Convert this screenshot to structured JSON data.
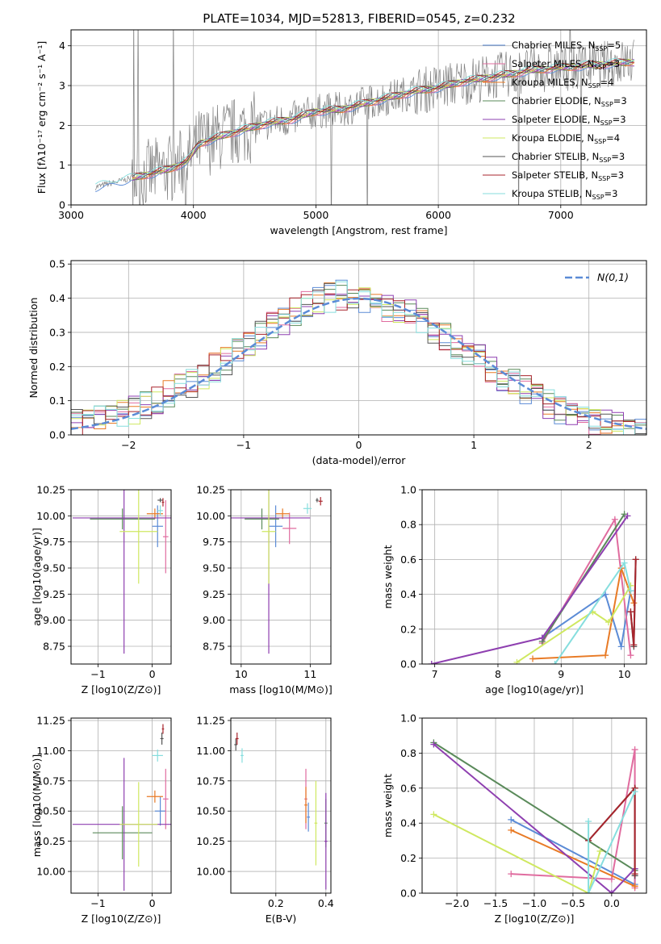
{
  "figure_title": "PLATE=1034, MJD=52813, FIBERID=0545, z=0.232",
  "colors": {
    "Chabrier MILES": "#5b8bd6",
    "Salpeter MILES": "#e06c9f",
    "Kroupa MILES": "#e87a25",
    "Chabrier ELODIE": "#5a8a5a",
    "Salpeter ELODIE": "#8e3fb0",
    "Kroupa ELODIE": "#cfe860",
    "Chabrier STELIB": "#555555",
    "Salpeter STELIB": "#a8242c",
    "Kroupa STELIB": "#86dede",
    "data": "#808080",
    "normal": "#5b8bd6"
  },
  "chart_data": [
    {
      "id": "spectrum",
      "type": "line",
      "xlabel": "wavelength [Angstrom, rest frame]",
      "ylabel": "Flux [fλ10⁻¹⁷ erg cm⁻² s⁻¹ A⁻¹]",
      "xlim": [
        3000,
        7700
      ],
      "ylim": [
        0,
        4.4
      ],
      "xticks": [
        "3000",
        "4000",
        "5000",
        "6000",
        "7000"
      ],
      "yticks": [
        "0",
        "1",
        "2",
        "3",
        "4"
      ],
      "legend": [
        "Chabrier MILES, N_SSP=5",
        "Salpeter MILES, N_SSP=3",
        "Kroupa MILES, N_SSP=4",
        "Chabrier ELODIE, N_SSP=3",
        "Salpeter ELODIE, N_SSP=3",
        "Kroupa ELODIE, N_SSP=4",
        "Chabrier STELIB, N_SSP=3",
        "Salpeter STELIB, N_SSP=3",
        "Kroupa STELIB, N_SSP=3"
      ],
      "continuum": {
        "x": [
          3200,
          3400,
          3600,
          3800,
          3950,
          4050,
          4300,
          4600,
          4800,
          5000,
          5200,
          5400,
          5600,
          5800,
          6000,
          6200,
          6400,
          6600,
          6800,
          7000,
          7200,
          7400,
          7600
        ],
        "y": [
          0.45,
          0.6,
          0.75,
          0.9,
          1.1,
          1.55,
          1.8,
          2.05,
          2.15,
          2.35,
          2.4,
          2.55,
          2.7,
          2.85,
          2.95,
          3.1,
          3.2,
          3.3,
          3.4,
          3.45,
          3.5,
          3.55,
          3.6
        ]
      }
    },
    {
      "id": "residuals",
      "type": "line",
      "xlabel": "(data-model)/error",
      "ylabel": "Normed distribution",
      "xlim": [
        -2.5,
        2.5
      ],
      "ylim": [
        0,
        0.51
      ],
      "xticks": [
        "−2",
        "−1",
        "0",
        "1",
        "2"
      ],
      "yticks": [
        "0.0",
        "0.1",
        "0.2",
        "0.3",
        "0.4",
        "0.5"
      ],
      "legend": [
        "N(0,1)"
      ],
      "bin_width": 0.1
    },
    {
      "id": "age_vs_Z",
      "type": "scatter",
      "xlabel": "Z [log10(Z/Z⊙)]",
      "ylabel": "age  [log10(age/yr)]",
      "xlim": [
        -1.5,
        0.35
      ],
      "ylim": [
        8.58,
        10.25
      ],
      "xticks": [
        "−1",
        "0"
      ],
      "yticks": [
        "8.75",
        "9.00",
        "9.25",
        "9.50",
        "9.75",
        "10.00",
        "10.25"
      ],
      "points": [
        {
          "m": "Chabrier MILES",
          "x": 0.1,
          "xerr": 0.1,
          "y": 9.9,
          "yerr": 0.2
        },
        {
          "m": "Salpeter MILES",
          "x": 0.25,
          "xerr": 0.05,
          "y": 9.8,
          "yerr": 0.35
        },
        {
          "m": "Kroupa MILES",
          "x": 0.05,
          "xerr": 0.15,
          "y": 10.02,
          "yerr": 0.05
        },
        {
          "m": "Chabrier ELODIE",
          "x": -0.55,
          "xerr": 0.6,
          "y": 9.97,
          "yerr": 0.1
        },
        {
          "m": "Salpeter ELODIE",
          "x": -0.52,
          "xerr": 0.95,
          "y": 9.98,
          "yerr": 1.3
        },
        {
          "m": "Kroupa ELODIE",
          "x": -0.25,
          "xerr": 0.35,
          "y": 9.85,
          "yerr": 0.5
        },
        {
          "m": "Chabrier STELIB",
          "x": 0.15,
          "xerr": 0.05,
          "y": 10.15,
          "yerr": 0.02
        },
        {
          "m": "Salpeter STELIB",
          "x": 0.2,
          "xerr": 0.02,
          "y": 10.13,
          "yerr": 0.04
        },
        {
          "m": "Kroupa STELIB",
          "x": 0.15,
          "xerr": 0.05,
          "y": 10.05,
          "yerr": 0.05
        }
      ]
    },
    {
      "id": "age_vs_mass",
      "type": "scatter",
      "xlabel": "mass [log10(M/M⊙)]",
      "ylabel": "",
      "xlim": [
        9.85,
        11.3
      ],
      "ylim": [
        8.58,
        10.25
      ],
      "xticks": [
        "10",
        "11"
      ],
      "yticks": [
        "8.75",
        "9.00",
        "9.25",
        "9.50",
        "9.75",
        "10.00",
        "10.25"
      ],
      "points": [
        {
          "m": "Chabrier MILES",
          "x": 10.5,
          "xerr": 0.1,
          "y": 9.9,
          "yerr": 0.2
        },
        {
          "m": "Salpeter MILES",
          "x": 10.7,
          "xerr": 0.1,
          "y": 9.88,
          "yerr": 0.15
        },
        {
          "m": "Kroupa MILES",
          "x": 10.6,
          "xerr": 0.1,
          "y": 10.02,
          "yerr": 0.05
        },
        {
          "m": "Chabrier ELODIE",
          "x": 10.3,
          "xerr": 0.25,
          "y": 9.97,
          "yerr": 0.1
        },
        {
          "m": "Salpeter ELODIE",
          "x": 10.4,
          "xerr": 0.6,
          "y": 9.98,
          "yerr": 1.3
        },
        {
          "m": "Kroupa ELODIE",
          "x": 10.4,
          "xerr": 0.1,
          "y": 9.85,
          "yerr": 0.5
        },
        {
          "m": "Chabrier STELIB",
          "x": 11.1,
          "xerr": 0.02,
          "y": 10.15,
          "yerr": 0.02
        },
        {
          "m": "Salpeter STELIB",
          "x": 11.15,
          "xerr": 0.03,
          "y": 10.14,
          "yerr": 0.04
        },
        {
          "m": "Kroupa STELIB",
          "x": 10.96,
          "xerr": 0.06,
          "y": 10.07,
          "yerr": 0.05
        }
      ]
    },
    {
      "id": "weight_vs_age",
      "type": "line",
      "xlabel": "age  [log10(age/yr)]",
      "ylabel": "mass weight",
      "xlim": [
        6.8,
        10.35
      ],
      "ylim": [
        0,
        1
      ],
      "xticks": [
        "7",
        "8",
        "9",
        "10"
      ],
      "yticks": [
        "0.0",
        "0.2",
        "0.4",
        "0.6",
        "0.8",
        "1.0"
      ],
      "series": [
        {
          "m": "Chabrier MILES",
          "x": [
            8.7,
            9.7,
            9.95,
            10.1
          ],
          "y": [
            0.15,
            0.4,
            0.1,
            0.42
          ]
        },
        {
          "m": "Salpeter MILES",
          "x": [
            8.7,
            9.85,
            10.1
          ],
          "y": [
            0.12,
            0.83,
            0.05
          ]
        },
        {
          "m": "Kroupa MILES",
          "x": [
            8.55,
            9.7,
            9.95,
            10.15
          ],
          "y": [
            0.03,
            0.05,
            0.55,
            0.35
          ]
        },
        {
          "m": "Chabrier ELODIE",
          "x": [
            8.7,
            10.0
          ],
          "y": [
            0.13,
            0.86
          ]
        },
        {
          "m": "Salpeter ELODIE",
          "x": [
            6.95,
            8.7,
            10.05
          ],
          "y": [
            0.0,
            0.15,
            0.85
          ]
        },
        {
          "m": "Kroupa ELODIE",
          "x": [
            8.3,
            9.5,
            9.75,
            10.1
          ],
          "y": [
            0.01,
            0.3,
            0.24,
            0.45
          ]
        },
        {
          "m": "Chabrier STELIB",
          "x": [
            10.1,
            10.15,
            10.18
          ],
          "y": [
            0.3,
            0.1,
            0.6
          ]
        },
        {
          "m": "Salpeter STELIB",
          "x": [
            10.1,
            10.15,
            10.18
          ],
          "y": [
            0.3,
            0.11,
            0.6
          ]
        },
        {
          "m": "Kroupa STELIB",
          "x": [
            8.9,
            10.0,
            10.1
          ],
          "y": [
            0.0,
            0.58,
            0.42
          ]
        }
      ]
    },
    {
      "id": "mass_vs_Z",
      "type": "scatter",
      "xlabel": "Z [log10(Z/Z⊙)]",
      "ylabel": "mass [log10(M/M⊙)]",
      "xlim": [
        -1.5,
        0.35
      ],
      "ylim": [
        9.82,
        11.27
      ],
      "xticks": [
        "−1",
        "0"
      ],
      "yticks": [
        "10.00",
        "10.25",
        "10.50",
        "10.75",
        "11.00",
        "11.25"
      ],
      "points": [
        {
          "m": "Chabrier MILES",
          "x": 0.15,
          "xerr": 0.1,
          "y": 10.5,
          "yerr": 0.12
        },
        {
          "m": "Salpeter MILES",
          "x": 0.25,
          "xerr": 0.05,
          "y": 10.6,
          "yerr": 0.25
        },
        {
          "m": "Kroupa MILES",
          "x": 0.05,
          "xerr": 0.15,
          "y": 10.62,
          "yerr": 0.05
        },
        {
          "m": "Chabrier ELODIE",
          "x": -0.55,
          "xerr": 0.55,
          "y": 10.32,
          "yerr": 0.22
        },
        {
          "m": "Salpeter ELODIE",
          "x": -0.52,
          "xerr": 0.95,
          "y": 10.39,
          "yerr": 0.55
        },
        {
          "m": "Kroupa ELODIE",
          "x": -0.25,
          "xerr": 0.35,
          "y": 10.39,
          "yerr": 0.35
        },
        {
          "m": "Chabrier STELIB",
          "x": 0.18,
          "xerr": 0.03,
          "y": 11.1,
          "yerr": 0.05
        },
        {
          "m": "Salpeter STELIB",
          "x": 0.2,
          "xerr": 0.02,
          "y": 11.18,
          "yerr": 0.04
        },
        {
          "m": "Kroupa STELIB",
          "x": 0.1,
          "xerr": 0.1,
          "y": 10.96,
          "yerr": 0.05
        }
      ]
    },
    {
      "id": "mass_vs_EBV",
      "type": "scatter",
      "xlabel": "E(B-V)",
      "ylabel": "",
      "xlim": [
        0.02,
        0.42
      ],
      "ylim": [
        9.82,
        11.27
      ],
      "xticks": [
        "0.2",
        "0.4"
      ],
      "yticks": [
        "10.00",
        "10.25",
        "10.50",
        "10.75",
        "11.00",
        "11.25"
      ],
      "points": [
        {
          "m": "Chabrier MILES",
          "x": 0.33,
          "y": 10.45,
          "yerr": 0.12
        },
        {
          "m": "Salpeter MILES",
          "x": 0.32,
          "y": 10.6,
          "yerr": 0.25
        },
        {
          "m": "Kroupa MILES",
          "x": 0.32,
          "y": 10.55,
          "yerr": 0.15
        },
        {
          "m": "Chabrier ELODIE",
          "x": 0.4,
          "y": 10.4,
          "yerr": 0.2
        },
        {
          "m": "Salpeter ELODIE",
          "x": 0.4,
          "y": 10.25,
          "yerr": 0.4
        },
        {
          "m": "Kroupa ELODIE",
          "x": 0.36,
          "y": 10.4,
          "yerr": 0.35
        },
        {
          "m": "Chabrier STELIB",
          "x": 0.04,
          "y": 11.05,
          "yerr": 0.05
        },
        {
          "m": "Salpeter STELIB",
          "x": 0.045,
          "y": 11.1,
          "yerr": 0.05
        },
        {
          "m": "Kroupa STELIB",
          "x": 0.065,
          "y": 10.96,
          "yerr": 0.06
        }
      ]
    },
    {
      "id": "weight_vs_Z",
      "type": "line",
      "xlabel": "Z [log10(Z/Z⊙)]",
      "ylabel": "mass weight",
      "xlim": [
        -2.45,
        0.45
      ],
      "ylim": [
        0,
        1
      ],
      "xticks": [
        "−2.0",
        "−1.5",
        "−1.0",
        "−0.5",
        "0.0"
      ],
      "yticks": [
        "0.0",
        "0.2",
        "0.4",
        "0.6",
        "0.8",
        "1.0"
      ],
      "series": [
        {
          "m": "Chabrier MILES",
          "x": [
            -1.3,
            0.3,
            0.3
          ],
          "y": [
            0.42,
            0.05,
            0.14
          ]
        },
        {
          "m": "Salpeter MILES",
          "x": [
            -1.3,
            0.0,
            0.3,
            0.3
          ],
          "y": [
            0.11,
            0.08,
            0.82,
            0.03
          ]
        },
        {
          "m": "Kroupa MILES",
          "x": [
            -1.3,
            0.3
          ],
          "y": [
            0.36,
            0.04
          ]
        },
        {
          "m": "Chabrier ELODIE",
          "x": [
            -2.3,
            0.3
          ],
          "y": [
            0.86,
            0.13
          ]
        },
        {
          "m": "Salpeter ELODIE",
          "x": [
            -2.3,
            0.0,
            0.3
          ],
          "y": [
            0.85,
            0.0,
            0.14
          ]
        },
        {
          "m": "Kroupa ELODIE",
          "x": [
            -2.3,
            -0.3,
            -0.15
          ],
          "y": [
            0.45,
            0.0,
            0.24
          ]
        },
        {
          "m": "Chabrier STELIB",
          "x": [
            -0.3,
            0.3,
            0.3
          ],
          "y": [
            0.3,
            0.6,
            0.1
          ]
        },
        {
          "m": "Salpeter STELIB",
          "x": [
            -0.3,
            0.3,
            0.3
          ],
          "y": [
            0.3,
            0.6,
            0.11
          ]
        },
        {
          "m": "Kroupa STELIB",
          "x": [
            -0.3,
            -0.3,
            0.3
          ],
          "y": [
            0.41,
            0.0,
            0.58
          ]
        }
      ]
    }
  ]
}
